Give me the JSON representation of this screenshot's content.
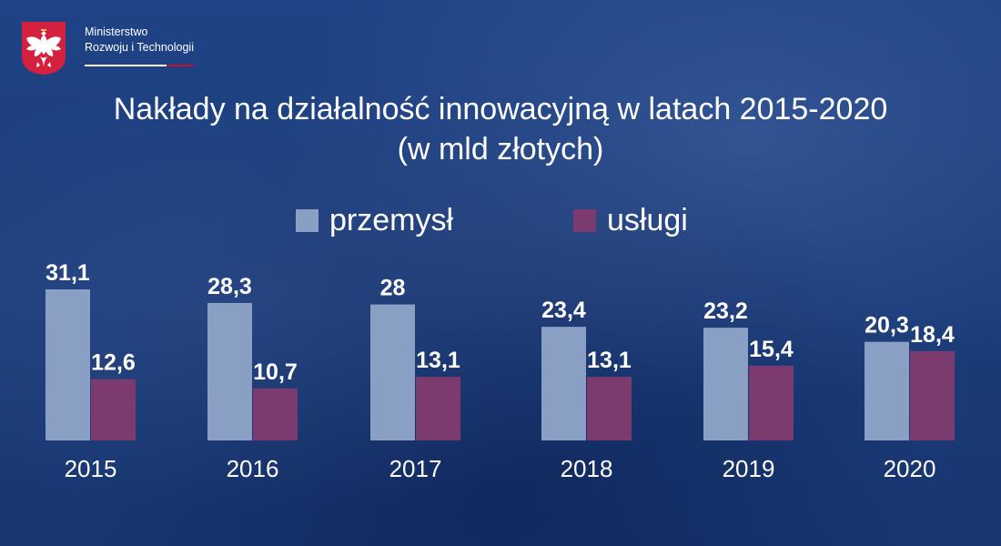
{
  "header": {
    "ministry_line1": "Ministerstwo",
    "ministry_line2": "Rozwoju i Technologii"
  },
  "chart_data": {
    "type": "bar",
    "title": "Nakłady na działalność innowacyjną w latach 2015-2020",
    "subtitle": "(w mld złotych)",
    "categories": [
      "2015",
      "2016",
      "2017",
      "2018",
      "2019",
      "2020"
    ],
    "series": [
      {
        "name": "przemysł",
        "color": "#8a9fc4",
        "values": [
          31.1,
          28.3,
          28,
          23.4,
          23.2,
          20.3
        ],
        "labels": [
          "31,1",
          "28,3",
          "28",
          "23,4",
          "23,2",
          "20,3"
        ]
      },
      {
        "name": "usługi",
        "color": "#7b3b6e",
        "values": [
          12.6,
          10.7,
          13.1,
          13.1,
          15.4,
          18.4
        ],
        "labels": [
          "12,6",
          "10,7",
          "13,1",
          "13,1",
          "15,4",
          "18,4"
        ]
      }
    ],
    "legend_position": "top-center",
    "grid": false,
    "ylim": [
      0,
      31.1
    ]
  }
}
